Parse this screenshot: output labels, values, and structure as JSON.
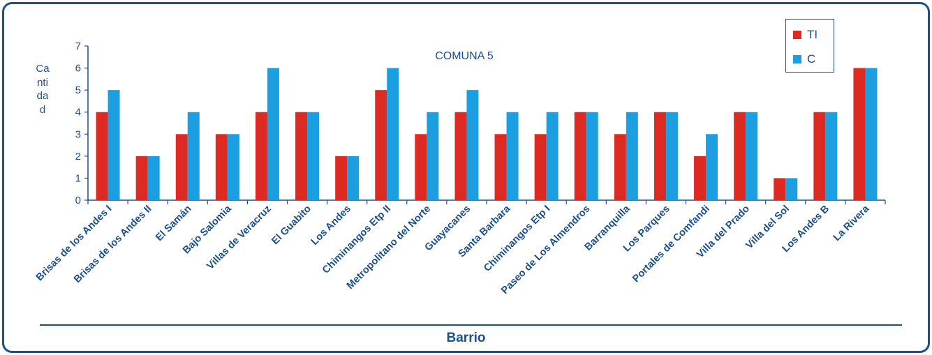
{
  "chart_data": {
    "type": "bar",
    "title": "COMUNA 5",
    "xlabel": "Barrio",
    "ylabel": "Cantidad",
    "ylim": [
      0,
      7
    ],
    "yticks": [
      0,
      1,
      2,
      3,
      4,
      5,
      6,
      7
    ],
    "grid": false,
    "legend_position": "top-right",
    "categories": [
      "Brisas de los Andes I",
      "Brisas de los Andes II",
      "El Samán",
      "Bajo Salomia",
      "Villas de Veracruz",
      "El Guabito",
      "Los Andes",
      "Chiminangos Etp II",
      "Metropolitano del Norte",
      "Guayacanes",
      "Santa Barbara",
      "Chiminangos Etp I",
      "Paseo de Los Almendros",
      "Barranquilla",
      "Los Parques",
      "Portales de Comfandi",
      "Villa del Prado",
      "Villa del Sol",
      "Los Andes B",
      "La Rivera"
    ],
    "series": [
      {
        "name": "TI",
        "color": "#dd2a22",
        "values": [
          4,
          2,
          3,
          3,
          4,
          4,
          2,
          5,
          3,
          4,
          3,
          3,
          4,
          3,
          4,
          2,
          4,
          1,
          4,
          6
        ]
      },
      {
        "name": "C",
        "color": "#1c9fe0",
        "values": [
          5,
          2,
          4,
          3,
          6,
          4,
          2,
          6,
          4,
          5,
          4,
          4,
          4,
          4,
          4,
          3,
          4,
          1,
          4,
          6
        ]
      }
    ]
  },
  "colors": {
    "frame": "#1a4f8f",
    "text": "#1a4f8f",
    "axis": "#1a4f8f"
  }
}
